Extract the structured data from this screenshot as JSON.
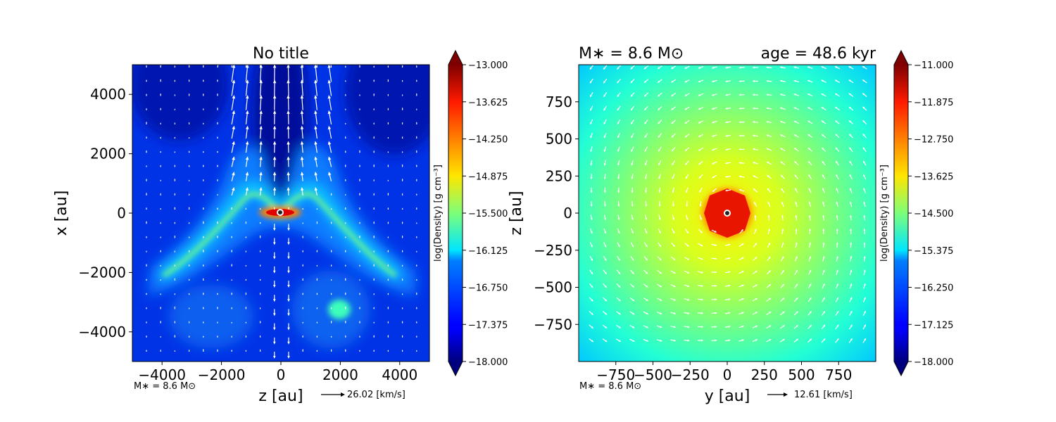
{
  "chart_data": [
    {
      "type": "heatmap",
      "title": "No title",
      "title_left": "",
      "title_right": "",
      "xlabel": "z [au]",
      "ylabel": "x [au]",
      "xlim": [
        -5000,
        5000
      ],
      "ylim": [
        -5000,
        5000
      ],
      "xticks": [
        -4000,
        -2000,
        0,
        2000,
        4000
      ],
      "yticks": [
        -4000,
        -2000,
        0,
        2000,
        4000
      ],
      "xtick_labels": [
        "−4000",
        "−2000",
        "0",
        "2000",
        "4000"
      ],
      "ytick_labels": [
        "−4000",
        "−2000",
        "0",
        "2000",
        "4000"
      ],
      "colorbar": {
        "label": "log(Density) [g cm⁻³]",
        "min": -18.0,
        "max": -13.0,
        "ticks": [
          -13.0,
          -13.625,
          -14.25,
          -14.875,
          -15.5,
          -16.125,
          -16.75,
          -17.375,
          -18.0
        ],
        "tick_labels": [
          "−13.000",
          "−13.625",
          "−14.250",
          "−14.875",
          "−15.500",
          "−16.125",
          "−16.750",
          "−17.375",
          "−18.000"
        ],
        "colormap": "jet"
      },
      "mass_note": "M∗ = 8.6 M⊙",
      "quiver_key": "26.02 [km/s]",
      "features": {
        "background_level": -17.6,
        "sink_position": [
          0,
          0
        ],
        "clump_position": [
          2000,
          -3300
        ],
        "outflow_cone": "vertical, velocity vectors pointing toward +x above the sink"
      }
    },
    {
      "type": "heatmap",
      "title": "",
      "title_left": "M∗ = 8.6 M⊙",
      "title_right": "age = 48.6 kyr",
      "xlabel": "y [au]",
      "ylabel": "z [au]",
      "xlim": [
        -1000,
        1000
      ],
      "ylim": [
        -1000,
        1000
      ],
      "xticks": [
        -750,
        -500,
        -250,
        0,
        250,
        500,
        750
      ],
      "yticks": [
        -750,
        -500,
        -250,
        0,
        250,
        500,
        750
      ],
      "xtick_labels": [
        "−750",
        "−500",
        "−250",
        "0",
        "250",
        "500",
        "750"
      ],
      "ytick_labels": [
        "−750",
        "−500",
        "−250",
        "0",
        "250",
        "500",
        "750"
      ],
      "colorbar": {
        "label": "log(Density) [g cm⁻³]",
        "min": -18.0,
        "max": -11.0,
        "ticks": [
          -11.0,
          -11.875,
          -12.75,
          -13.625,
          -14.5,
          -15.375,
          -16.25,
          -17.125,
          -18.0
        ],
        "tick_labels": [
          "−11.000",
          "−11.875",
          "−12.750",
          "−13.625",
          "−14.500",
          "−15.375",
          "−16.250",
          "−17.125",
          "−18.000"
        ],
        "colormap": "jet"
      },
      "mass_note": "M∗ = 8.6 M⊙",
      "quiver_key": "12.61 [km/s]",
      "features": {
        "sink_position": [
          0,
          0
        ],
        "peak_level": -11.3,
        "edge_level": -15.8,
        "flow": "counter-clockwise rotation around sink"
      }
    }
  ]
}
